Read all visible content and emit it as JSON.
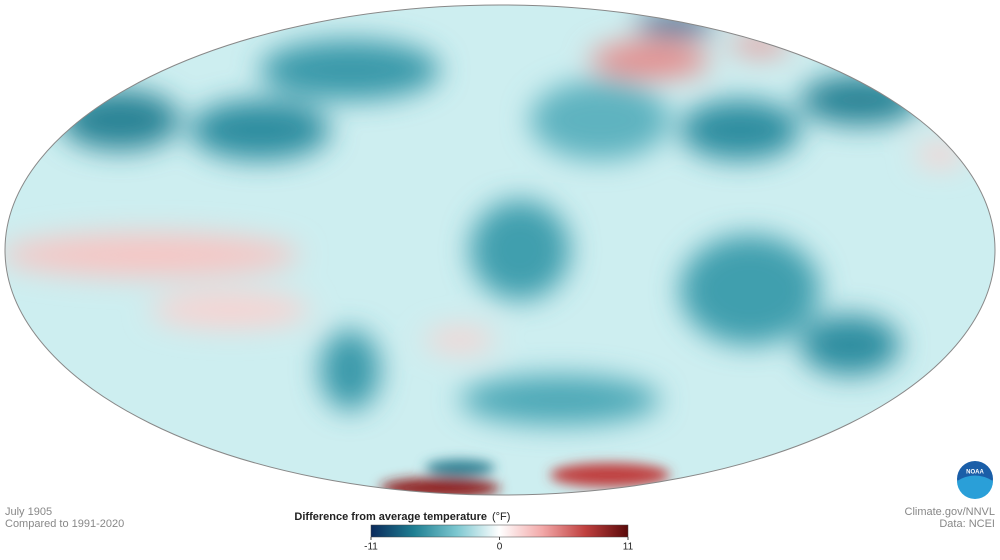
{
  "caption": {
    "date": "July 1905",
    "baseline": "Compared to 1991-2020"
  },
  "legend": {
    "title": "Difference from average temperature",
    "unit": "(°F)",
    "range": [
      -11,
      11
    ],
    "ticks": [
      -11,
      0,
      11
    ],
    "colors": [
      "#0b2a5c",
      "#1f7f92",
      "#7cc7d0",
      "#ffffff",
      "#f2a8a8",
      "#c0403f",
      "#5a0a0a"
    ]
  },
  "credits": {
    "source": "Climate.gov/NNVL",
    "data": "Data: NCEI"
  },
  "logo": {
    "text": "NOAA"
  }
}
